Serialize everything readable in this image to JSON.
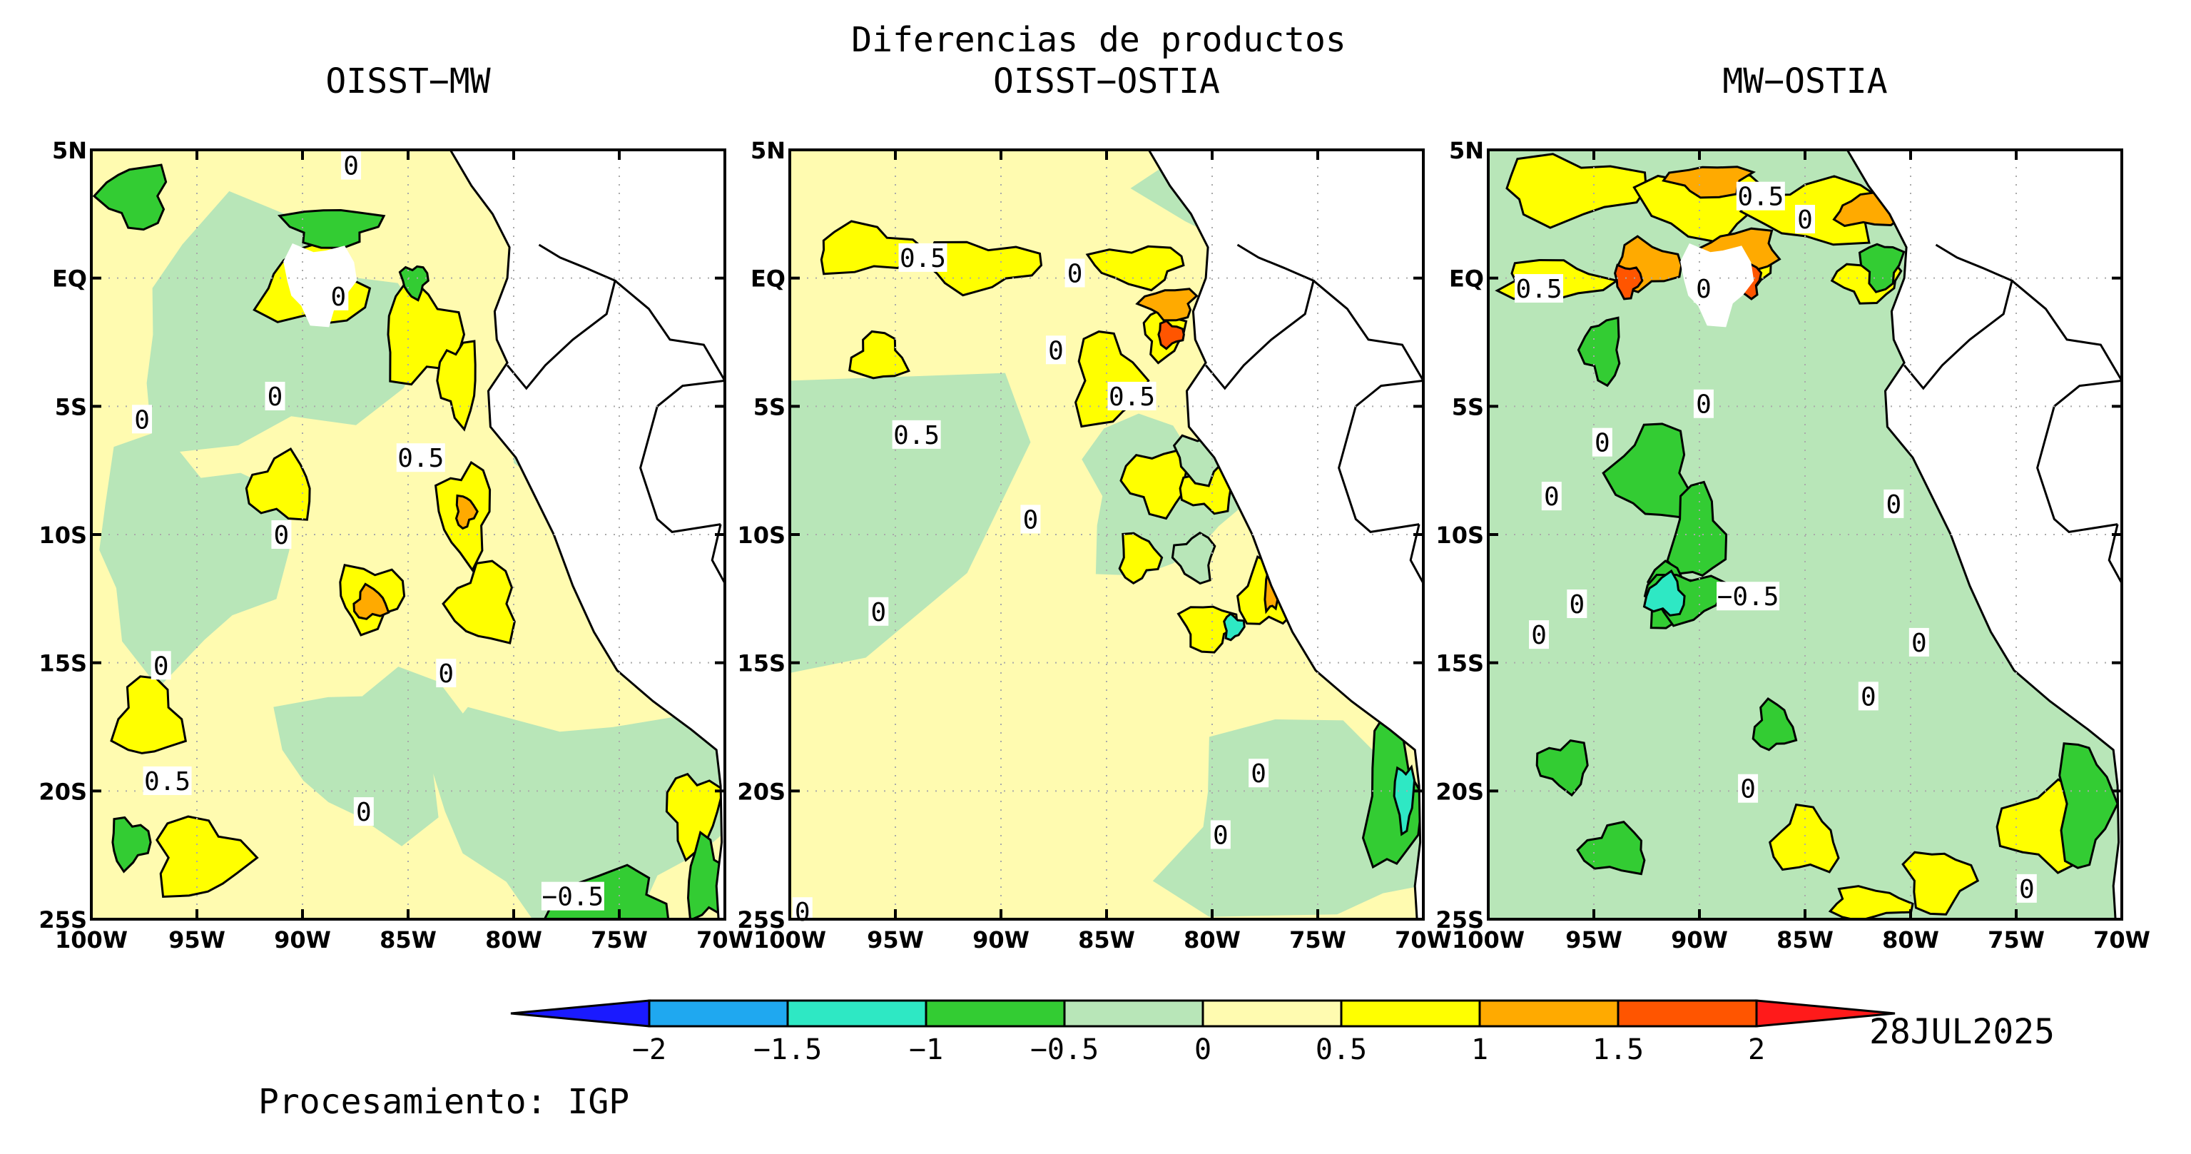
{
  "title": "Diferencias de productos",
  "date": "28JUL2025",
  "credit": "Procesamiento: IGP",
  "panels": [
    {
      "title": "OISST−MW",
      "contour_labels": [
        "0",
        "0",
        "0",
        "0",
        "0.5",
        "0",
        "0",
        "0",
        "0.5",
        "0",
        "−0.5"
      ]
    },
    {
      "title": "OISST−OSTIA",
      "contour_labels": [
        "0.5",
        "0",
        "0",
        "0.5",
        "0.5",
        "0",
        "0",
        "0",
        "0",
        "0"
      ]
    },
    {
      "title": "MW−OSTIA",
      "contour_labels": [
        "0.5",
        "0",
        "0.5",
        "0",
        "0",
        "0",
        "0",
        "0",
        "−0.5",
        "0",
        "0",
        "0",
        "0",
        "0",
        "0"
      ]
    }
  ],
  "axes": {
    "lat_ticks": [
      "5N",
      "EQ",
      "5S",
      "10S",
      "15S",
      "20S",
      "25S"
    ],
    "lon_ticks": [
      "100W",
      "95W",
      "90W",
      "85W",
      "80W",
      "75W",
      "70W"
    ],
    "lat_range": [
      -25,
      5
    ],
    "lon_range": [
      -100,
      -70
    ],
    "grid": true
  },
  "colorbar": {
    "ticks": [
      "−2",
      "−1.5",
      "−1",
      "−0.5",
      "0",
      "0.5",
      "1",
      "1.5",
      "2"
    ],
    "colors": [
      "#1a1aff",
      "#1fa8f0",
      "#2ee8c4",
      "#33cc33",
      "#b8e6b8",
      "#fffbb0",
      "#ffff00",
      "#ffaa00",
      "#ff5500",
      "#ff1a1a"
    ]
  }
}
